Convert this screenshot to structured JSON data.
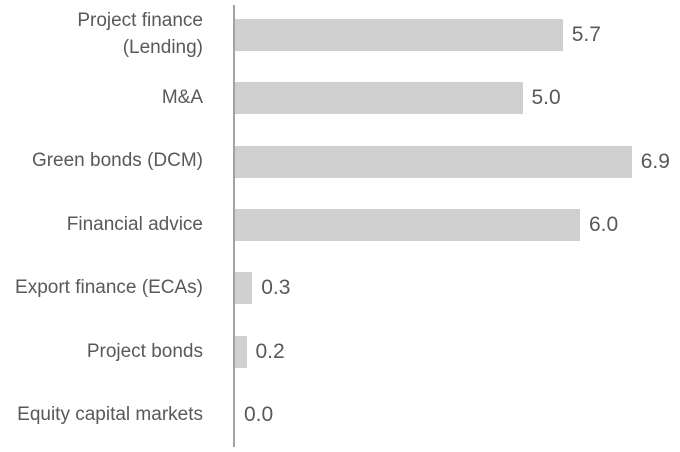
{
  "chart_data": {
    "type": "bar",
    "orientation": "horizontal",
    "title": "",
    "xlabel": "",
    "ylabel": "",
    "categories": [
      "Project finance\n(Lending)",
      "M&A",
      "Green bonds (DCM)",
      "Financial advice",
      "Export finance (ECAs)",
      "Project bonds",
      "Equity capital markets"
    ],
    "values": [
      5.7,
      5.0,
      6.9,
      6.0,
      0.3,
      0.2,
      0.0
    ],
    "value_labels": [
      "5.7",
      "5.0",
      "6.9",
      "6.0",
      "0.3",
      "0.2",
      "0.0"
    ],
    "xlim": [
      0,
      7.5
    ],
    "grid": false,
    "legend": false,
    "data_labels": "outside-end",
    "colors": {
      "bar_fill": "#d0d0d0",
      "axis_line": "#a3a3a3",
      "text": "#595959",
      "background": "#ffffff"
    }
  }
}
